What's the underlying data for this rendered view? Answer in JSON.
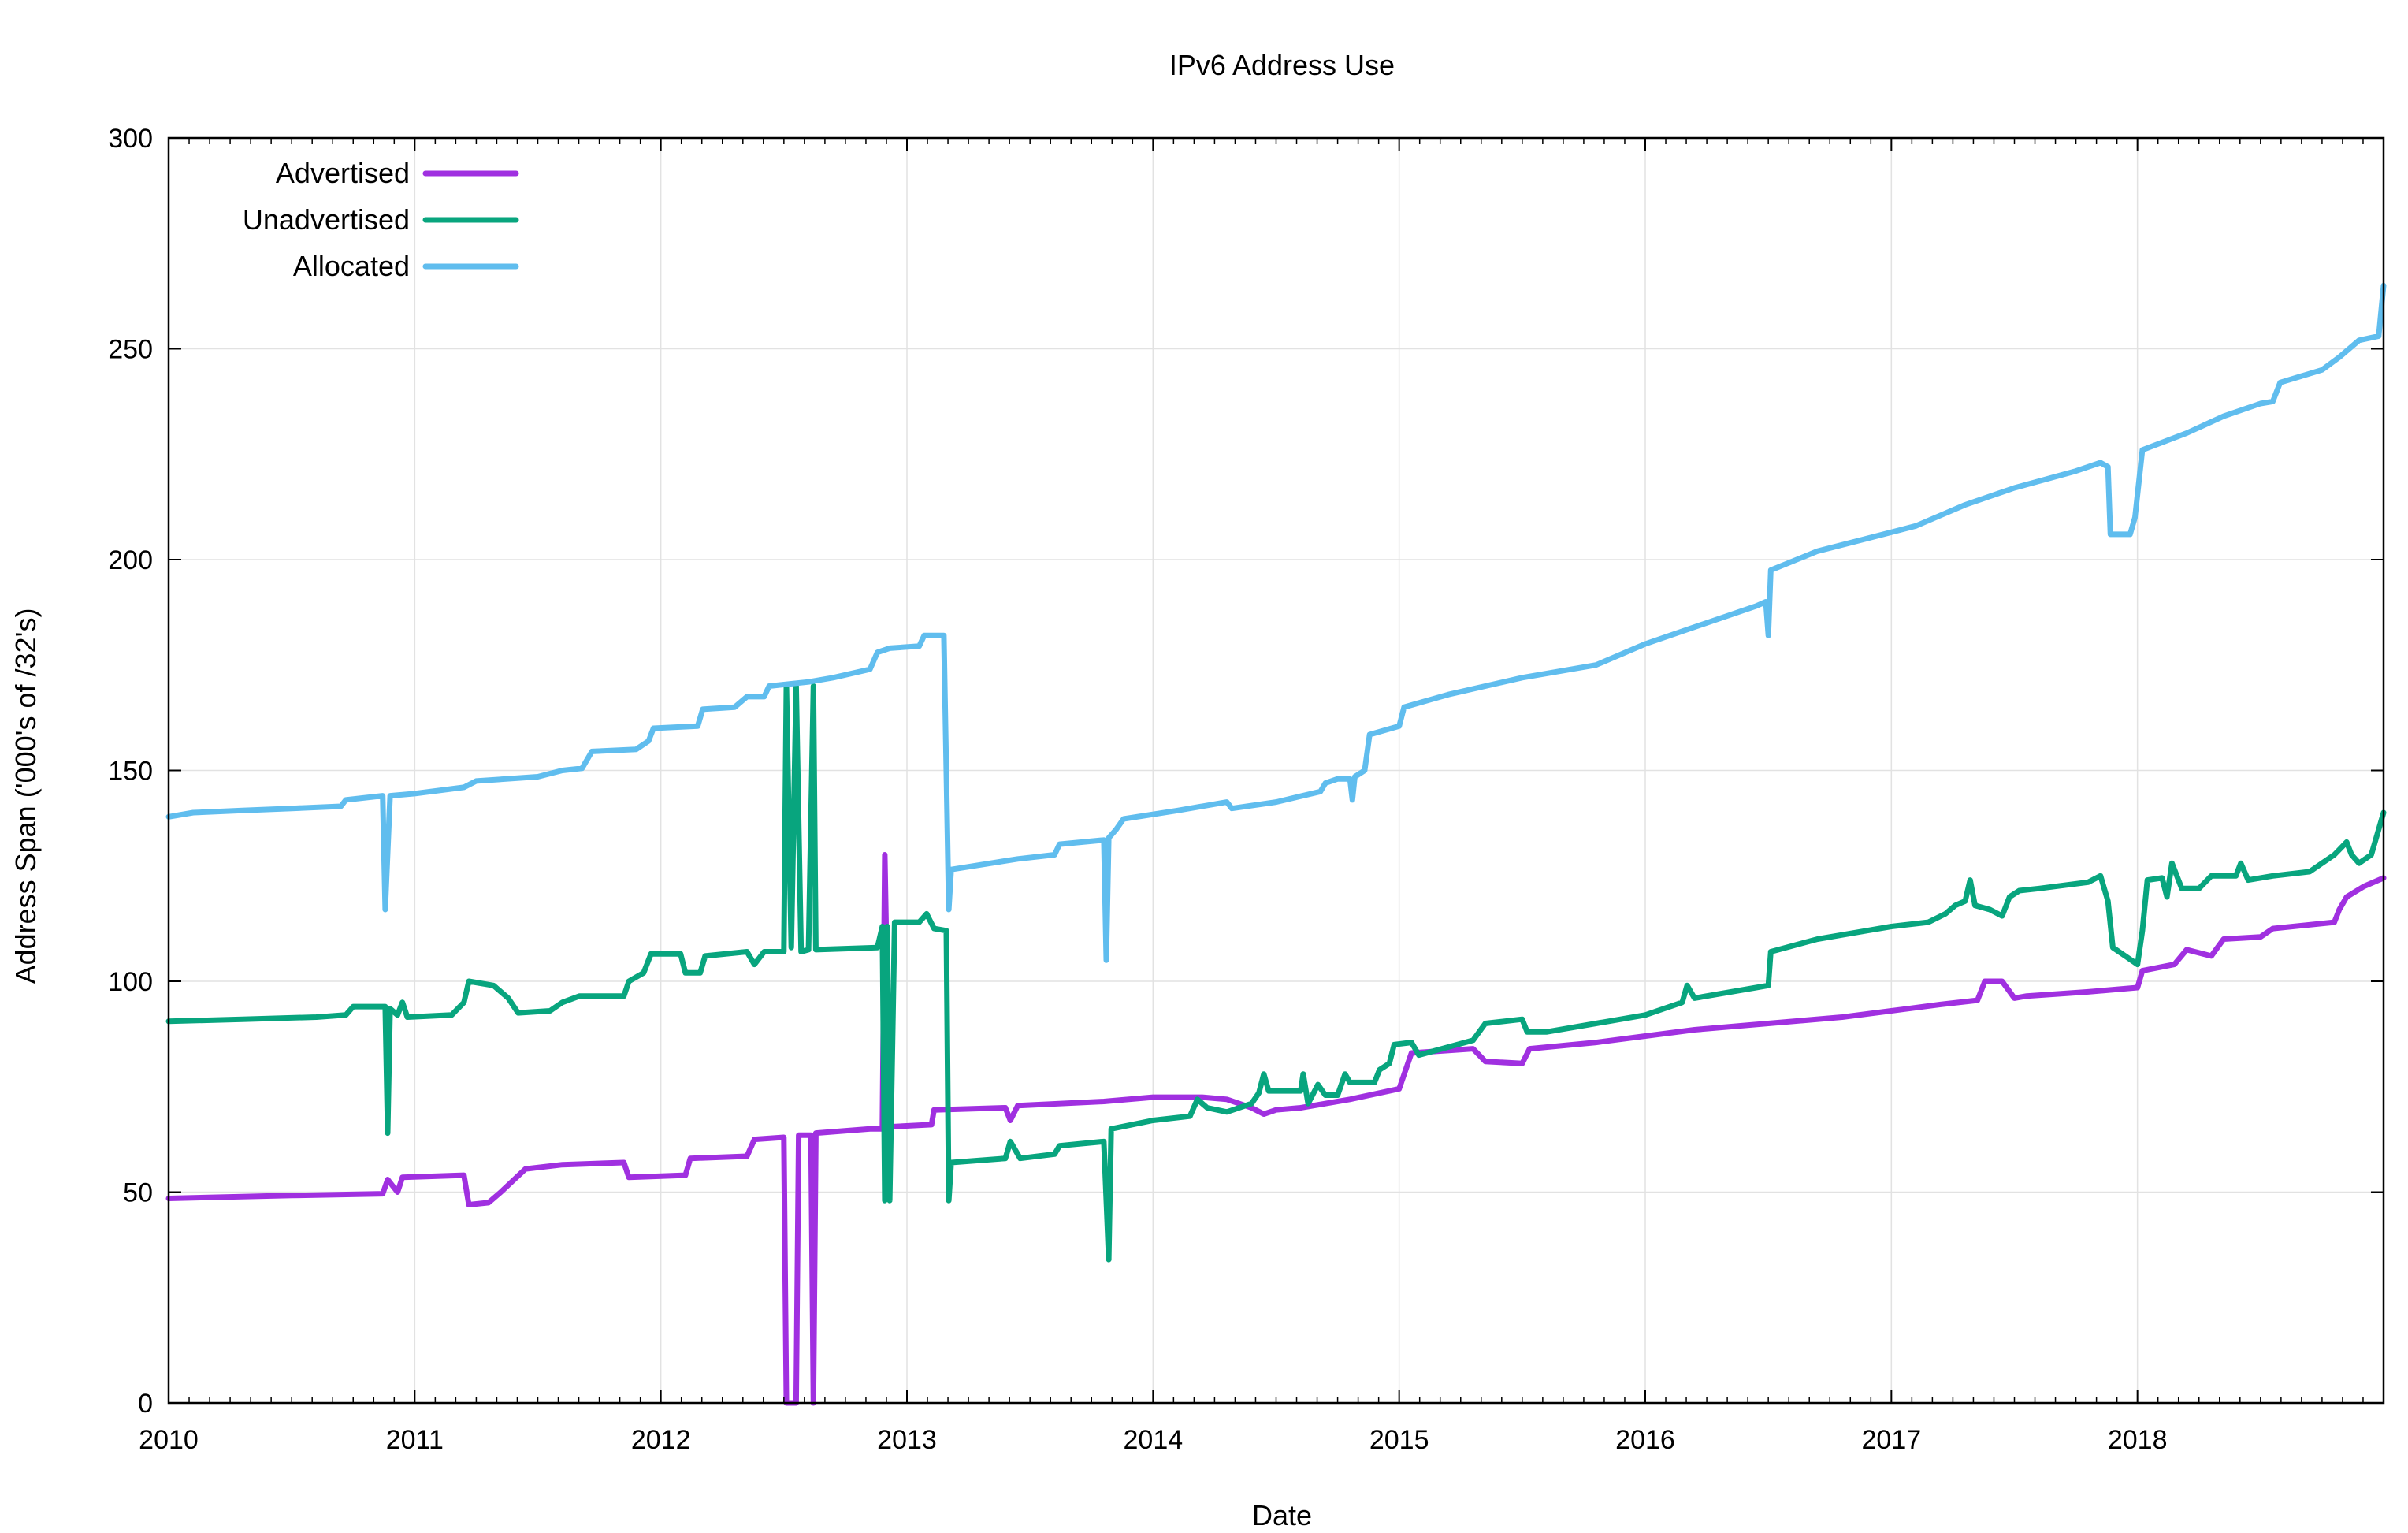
{
  "chart_data": {
    "type": "line",
    "title": "IPv6 Address Use",
    "xlabel": "Date",
    "ylabel": "Address Span ('000's of /32's)",
    "xlim": [
      2010.0,
      2019.0
    ],
    "ylim": [
      0,
      300
    ],
    "xticks": [
      2010,
      2011,
      2012,
      2013,
      2014,
      2015,
      2016,
      2017,
      2018
    ],
    "yticks": [
      0,
      50,
      100,
      150,
      200,
      250,
      300
    ],
    "grid": true,
    "legend_position": "top-left",
    "colors": {
      "Advertised": "#a030e0",
      "Unadvertised": "#08a57e",
      "Allocated": "#60bdee"
    },
    "series": [
      {
        "name": "Advertised",
        "color": "#a030e0",
        "points": [
          [
            2010.0,
            48.5
          ],
          [
            2010.5,
            49.2
          ],
          [
            2010.87,
            49.6
          ],
          [
            2010.89,
            53
          ],
          [
            2010.93,
            50
          ],
          [
            2010.95,
            53.5
          ],
          [
            2011.2,
            54
          ],
          [
            2011.22,
            47
          ],
          [
            2011.3,
            47.5
          ],
          [
            2011.35,
            50
          ],
          [
            2011.45,
            55.5
          ],
          [
            2011.6,
            56.5
          ],
          [
            2011.85,
            57
          ],
          [
            2011.87,
            53.5
          ],
          [
            2012.1,
            54
          ],
          [
            2012.12,
            58
          ],
          [
            2012.35,
            58.5
          ],
          [
            2012.38,
            62.5
          ],
          [
            2012.5,
            63
          ],
          [
            2012.51,
            0
          ],
          [
            2012.55,
            0
          ],
          [
            2012.56,
            63.5
          ],
          [
            2012.61,
            63.5
          ],
          [
            2012.62,
            0
          ],
          [
            2012.63,
            64
          ],
          [
            2012.85,
            65
          ],
          [
            2012.9,
            65
          ],
          [
            2012.91,
            130
          ],
          [
            2012.93,
            65.5
          ],
          [
            2013.1,
            66
          ],
          [
            2013.11,
            69.5
          ],
          [
            2013.4,
            70
          ],
          [
            2013.42,
            67
          ],
          [
            2013.45,
            70.5
          ],
          [
            2013.8,
            71.5
          ],
          [
            2014.0,
            72.5
          ],
          [
            2014.2,
            72.5
          ],
          [
            2014.3,
            72
          ],
          [
            2014.4,
            70
          ],
          [
            2014.45,
            68.5
          ],
          [
            2014.5,
            69.5
          ],
          [
            2014.6,
            70
          ],
          [
            2014.8,
            72
          ],
          [
            2015.0,
            74.5
          ],
          [
            2015.05,
            83
          ],
          [
            2015.3,
            84
          ],
          [
            2015.35,
            81
          ],
          [
            2015.5,
            80.5
          ],
          [
            2015.53,
            84
          ],
          [
            2015.8,
            85.5
          ],
          [
            2016.0,
            87
          ],
          [
            2016.2,
            88.5
          ],
          [
            2016.5,
            90
          ],
          [
            2016.8,
            91.5
          ],
          [
            2017.0,
            93
          ],
          [
            2017.2,
            94.5
          ],
          [
            2017.35,
            95.5
          ],
          [
            2017.38,
            100
          ],
          [
            2017.45,
            100
          ],
          [
            2017.5,
            96
          ],
          [
            2017.55,
            96.5
          ],
          [
            2017.8,
            97.5
          ],
          [
            2018.0,
            98.5
          ],
          [
            2018.02,
            102.5
          ],
          [
            2018.15,
            104
          ],
          [
            2018.2,
            107.5
          ],
          [
            2018.3,
            106
          ],
          [
            2018.35,
            110
          ],
          [
            2018.5,
            110.5
          ],
          [
            2018.55,
            112.5
          ],
          [
            2018.8,
            114
          ],
          [
            2018.82,
            117
          ],
          [
            2018.85,
            120
          ],
          [
            2018.92,
            122.5
          ],
          [
            2019.0,
            124.5
          ]
        ]
      },
      {
        "name": "Unadvertised",
        "color": "#08a57e",
        "points": [
          [
            2010.0,
            90.5
          ],
          [
            2010.3,
            91
          ],
          [
            2010.6,
            91.5
          ],
          [
            2010.72,
            92
          ],
          [
            2010.75,
            94
          ],
          [
            2010.88,
            94
          ],
          [
            2010.89,
            64
          ],
          [
            2010.9,
            93.5
          ],
          [
            2010.93,
            92
          ],
          [
            2010.95,
            95
          ],
          [
            2010.97,
            91.5
          ],
          [
            2011.15,
            92
          ],
          [
            2011.2,
            95
          ],
          [
            2011.22,
            100
          ],
          [
            2011.32,
            99
          ],
          [
            2011.38,
            96
          ],
          [
            2011.42,
            92.5
          ],
          [
            2011.55,
            93
          ],
          [
            2011.6,
            95
          ],
          [
            2011.67,
            96.5
          ],
          [
            2011.85,
            96.5
          ],
          [
            2011.87,
            100
          ],
          [
            2011.93,
            102
          ],
          [
            2011.96,
            106.5
          ],
          [
            2012.08,
            106.5
          ],
          [
            2012.1,
            102
          ],
          [
            2012.16,
            102
          ],
          [
            2012.18,
            106
          ],
          [
            2012.35,
            107
          ],
          [
            2012.38,
            104
          ],
          [
            2012.42,
            107
          ],
          [
            2012.5,
            107
          ],
          [
            2012.51,
            170
          ],
          [
            2012.53,
            108
          ],
          [
            2012.55,
            170
          ],
          [
            2012.57,
            107
          ],
          [
            2012.6,
            107.5
          ],
          [
            2012.62,
            170
          ],
          [
            2012.63,
            107.5
          ],
          [
            2012.88,
            108
          ],
          [
            2012.9,
            113
          ],
          [
            2012.91,
            48
          ],
          [
            2012.92,
            113
          ],
          [
            2012.93,
            48
          ],
          [
            2012.95,
            114
          ],
          [
            2013.05,
            114
          ],
          [
            2013.08,
            116
          ],
          [
            2013.11,
            112.5
          ],
          [
            2013.16,
            112
          ],
          [
            2013.17,
            48
          ],
          [
            2013.18,
            57
          ],
          [
            2013.4,
            58
          ],
          [
            2013.42,
            62
          ],
          [
            2013.46,
            58
          ],
          [
            2013.6,
            59
          ],
          [
            2013.62,
            61
          ],
          [
            2013.8,
            62
          ],
          [
            2013.82,
            34
          ],
          [
            2013.83,
            65
          ],
          [
            2014.0,
            67
          ],
          [
            2014.15,
            68
          ],
          [
            2014.18,
            72
          ],
          [
            2014.22,
            70
          ],
          [
            2014.3,
            69
          ],
          [
            2014.4,
            71
          ],
          [
            2014.43,
            73.5
          ],
          [
            2014.45,
            78
          ],
          [
            2014.47,
            74
          ],
          [
            2014.6,
            74
          ],
          [
            2014.61,
            78
          ],
          [
            2014.63,
            71
          ],
          [
            2014.67,
            75.5
          ],
          [
            2014.7,
            73
          ],
          [
            2014.75,
            73
          ],
          [
            2014.78,
            78
          ],
          [
            2014.8,
            76
          ],
          [
            2014.9,
            76
          ],
          [
            2014.92,
            79
          ],
          [
            2014.96,
            80.5
          ],
          [
            2014.98,
            85
          ],
          [
            2015.05,
            85.5
          ],
          [
            2015.08,
            82.5
          ],
          [
            2015.3,
            86
          ],
          [
            2015.35,
            90
          ],
          [
            2015.5,
            91
          ],
          [
            2015.52,
            88
          ],
          [
            2015.6,
            88
          ],
          [
            2015.8,
            90
          ],
          [
            2016.0,
            92
          ],
          [
            2016.15,
            95
          ],
          [
            2016.17,
            99
          ],
          [
            2016.2,
            96
          ],
          [
            2016.45,
            98.5
          ],
          [
            2016.5,
            99
          ],
          [
            2016.51,
            107
          ],
          [
            2016.7,
            110
          ],
          [
            2016.9,
            112
          ],
          [
            2017.0,
            113
          ],
          [
            2017.15,
            114
          ],
          [
            2017.22,
            116
          ],
          [
            2017.26,
            118
          ],
          [
            2017.3,
            119
          ],
          [
            2017.32,
            124
          ],
          [
            2017.34,
            118
          ],
          [
            2017.4,
            117
          ],
          [
            2017.45,
            115.5
          ],
          [
            2017.48,
            120
          ],
          [
            2017.52,
            121.5
          ],
          [
            2017.6,
            122
          ],
          [
            2017.8,
            123.5
          ],
          [
            2017.85,
            125
          ],
          [
            2017.88,
            119
          ],
          [
            2017.9,
            108
          ],
          [
            2017.95,
            106
          ],
          [
            2018.0,
            104
          ],
          [
            2018.02,
            112
          ],
          [
            2018.04,
            124
          ],
          [
            2018.1,
            124.5
          ],
          [
            2018.12,
            120
          ],
          [
            2018.14,
            128
          ],
          [
            2018.18,
            122
          ],
          [
            2018.25,
            122
          ],
          [
            2018.3,
            125
          ],
          [
            2018.4,
            125
          ],
          [
            2018.42,
            128
          ],
          [
            2018.45,
            124
          ],
          [
            2018.55,
            125
          ],
          [
            2018.7,
            126
          ],
          [
            2018.8,
            130
          ],
          [
            2018.85,
            133
          ],
          [
            2018.87,
            130
          ],
          [
            2018.9,
            128
          ],
          [
            2018.95,
            130
          ],
          [
            2019.0,
            140
          ]
        ]
      },
      {
        "name": "Allocated",
        "color": "#60bdee",
        "points": [
          [
            2010.0,
            139
          ],
          [
            2010.1,
            140
          ],
          [
            2010.3,
            140.5
          ],
          [
            2010.5,
            141
          ],
          [
            2010.7,
            141.5
          ],
          [
            2010.72,
            143
          ],
          [
            2010.87,
            144
          ],
          [
            2010.88,
            117
          ],
          [
            2010.9,
            144
          ],
          [
            2011.0,
            144.5
          ],
          [
            2011.2,
            146
          ],
          [
            2011.25,
            147.5
          ],
          [
            2011.5,
            148.5
          ],
          [
            2011.6,
            150
          ],
          [
            2011.68,
            150.5
          ],
          [
            2011.72,
            154.5
          ],
          [
            2011.9,
            155
          ],
          [
            2011.95,
            157
          ],
          [
            2011.97,
            160
          ],
          [
            2012.15,
            160.5
          ],
          [
            2012.17,
            164.5
          ],
          [
            2012.3,
            165
          ],
          [
            2012.35,
            167.5
          ],
          [
            2012.42,
            167.5
          ],
          [
            2012.44,
            170
          ],
          [
            2012.6,
            171
          ],
          [
            2012.7,
            172
          ],
          [
            2012.85,
            174
          ],
          [
            2012.88,
            178
          ],
          [
            2012.93,
            179
          ],
          [
            2013.05,
            179.5
          ],
          [
            2013.07,
            182
          ],
          [
            2013.15,
            182
          ],
          [
            2013.17,
            117
          ],
          [
            2013.18,
            126.5
          ],
          [
            2013.45,
            129
          ],
          [
            2013.6,
            130
          ],
          [
            2013.62,
            132.5
          ],
          [
            2013.8,
            133.5
          ],
          [
            2013.81,
            105
          ],
          [
            2013.82,
            134
          ],
          [
            2013.85,
            136
          ],
          [
            2013.88,
            138.5
          ],
          [
            2014.1,
            140.5
          ],
          [
            2014.3,
            142.5
          ],
          [
            2014.32,
            141
          ],
          [
            2014.5,
            142.5
          ],
          [
            2014.68,
            145
          ],
          [
            2014.7,
            147
          ],
          [
            2014.75,
            148
          ],
          [
            2014.8,
            148
          ],
          [
            2014.81,
            143
          ],
          [
            2014.82,
            148.5
          ],
          [
            2014.86,
            150
          ],
          [
            2014.88,
            158.5
          ],
          [
            2015.0,
            160.5
          ],
          [
            2015.02,
            165
          ],
          [
            2015.2,
            168
          ],
          [
            2015.5,
            172
          ],
          [
            2015.8,
            175
          ],
          [
            2016.0,
            180
          ],
          [
            2016.2,
            184
          ],
          [
            2016.45,
            189
          ],
          [
            2016.49,
            190
          ],
          [
            2016.5,
            182
          ],
          [
            2016.51,
            197.5
          ],
          [
            2016.7,
            202
          ],
          [
            2016.9,
            205
          ],
          [
            2017.1,
            208
          ],
          [
            2017.2,
            210.5
          ],
          [
            2017.3,
            213
          ],
          [
            2017.5,
            217
          ],
          [
            2017.75,
            221
          ],
          [
            2017.85,
            223
          ],
          [
            2017.88,
            222
          ],
          [
            2017.89,
            206
          ],
          [
            2017.97,
            206
          ],
          [
            2017.99,
            210
          ],
          [
            2018.02,
            226
          ],
          [
            2018.2,
            230
          ],
          [
            2018.35,
            234
          ],
          [
            2018.5,
            237
          ],
          [
            2018.55,
            237.5
          ],
          [
            2018.58,
            242
          ],
          [
            2018.75,
            245
          ],
          [
            2018.82,
            248
          ],
          [
            2018.9,
            252
          ],
          [
            2018.98,
            253
          ],
          [
            2019.0,
            265
          ]
        ]
      }
    ]
  }
}
